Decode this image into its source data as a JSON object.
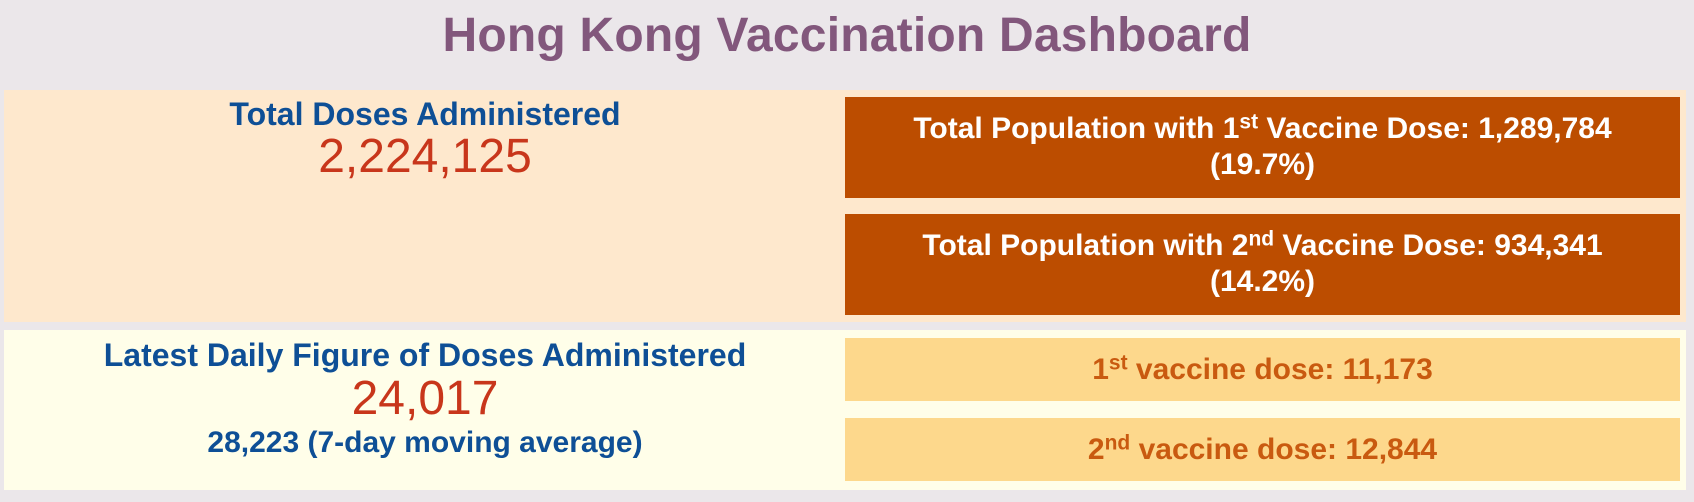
{
  "title": "Hong Kong Vaccination Dashboard",
  "total": {
    "label": "Total Doses Administered",
    "value": "2,224,125"
  },
  "population": {
    "first": {
      "prefix": "Total Population with 1",
      "sup": "st",
      "suffix": " Vaccine Dose: 1,289,784",
      "percent": "(19.7%)"
    },
    "second": {
      "prefix": "Total Population with 2",
      "sup": "nd",
      "suffix": " Vaccine Dose: 934,341",
      "percent": "(14.2%)"
    }
  },
  "daily": {
    "label": "Latest Daily Figure of Doses Administered",
    "value": "24,017",
    "moving_average": "28,223 (7-day moving average)",
    "first": {
      "prefix": "1",
      "sup": "st",
      "suffix": " vaccine dose: 11,173"
    },
    "second": {
      "prefix": "2",
      "sup": "nd",
      "suffix": " vaccine dose: 12,844"
    }
  },
  "colors": {
    "title": "#82577c",
    "label_blue": "#0e4f96",
    "number_red": "#c8361b",
    "dark_box": "#bc4d00",
    "light_box": "#fdd88c"
  }
}
